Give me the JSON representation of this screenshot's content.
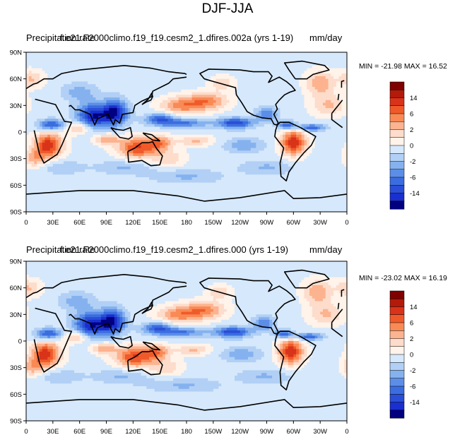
{
  "figure": {
    "title": "DJF-JJA"
  },
  "colorbar": {
    "levels": [
      -14,
      -10,
      -6,
      -4,
      -2,
      -1,
      0,
      1,
      2,
      4,
      6,
      10,
      14
    ],
    "labels": [
      "14",
      "6",
      "2",
      "0",
      "-2",
      "-6",
      "-14"
    ],
    "colors_top_to_bottom": [
      "#7f0000",
      "#b31a0a",
      "#d9331a",
      "#f05a2a",
      "#f98a55",
      "#fcb38f",
      "#fddccb",
      "#fff3ea",
      "#d6e8fb",
      "#b2d0f5",
      "#85b2ef",
      "#5c8ee8",
      "#3b6de0",
      "#2a4ed6",
      "#1a2fcf",
      "#000080"
    ]
  },
  "chart_data": [
    {
      "type": "heatmap",
      "title_left": "Precipitation rate",
      "title_center": "f.e21.F2000climo.f19_f19.cesm2_1.dfires.002a (yrs 1-19)",
      "title_right": "mm/day",
      "stats": "MIN = -21.98 MAX =  16.52",
      "min": -21.98,
      "max": 16.52,
      "xticks": [
        "0",
        "30E",
        "60E",
        "90E",
        "120E",
        "150E",
        "180",
        "150W",
        "120W",
        "90W",
        "60W",
        "30W",
        "0"
      ],
      "yticks": [
        "90N",
        "60N",
        "30N",
        "0",
        "30S",
        "60S",
        "90S"
      ]
    },
    {
      "type": "heatmap",
      "title_left": "Precipitation rate",
      "title_center": "f.e21.F2000climo.f19_f19.cesm2_1.dfires.000 (yrs 1-19)",
      "title_right": "mm/day",
      "stats": "MIN = -23.02 MAX =  16.19",
      "min": -23.02,
      "max": 16.19,
      "xticks": [
        "0",
        "30E",
        "60E",
        "90E",
        "120E",
        "150E",
        "180",
        "150W",
        "120W",
        "90W",
        "60W",
        "30W",
        "0"
      ],
      "yticks": [
        "90N",
        "60N",
        "30N",
        "0",
        "30S",
        "60S",
        "90S"
      ]
    }
  ]
}
